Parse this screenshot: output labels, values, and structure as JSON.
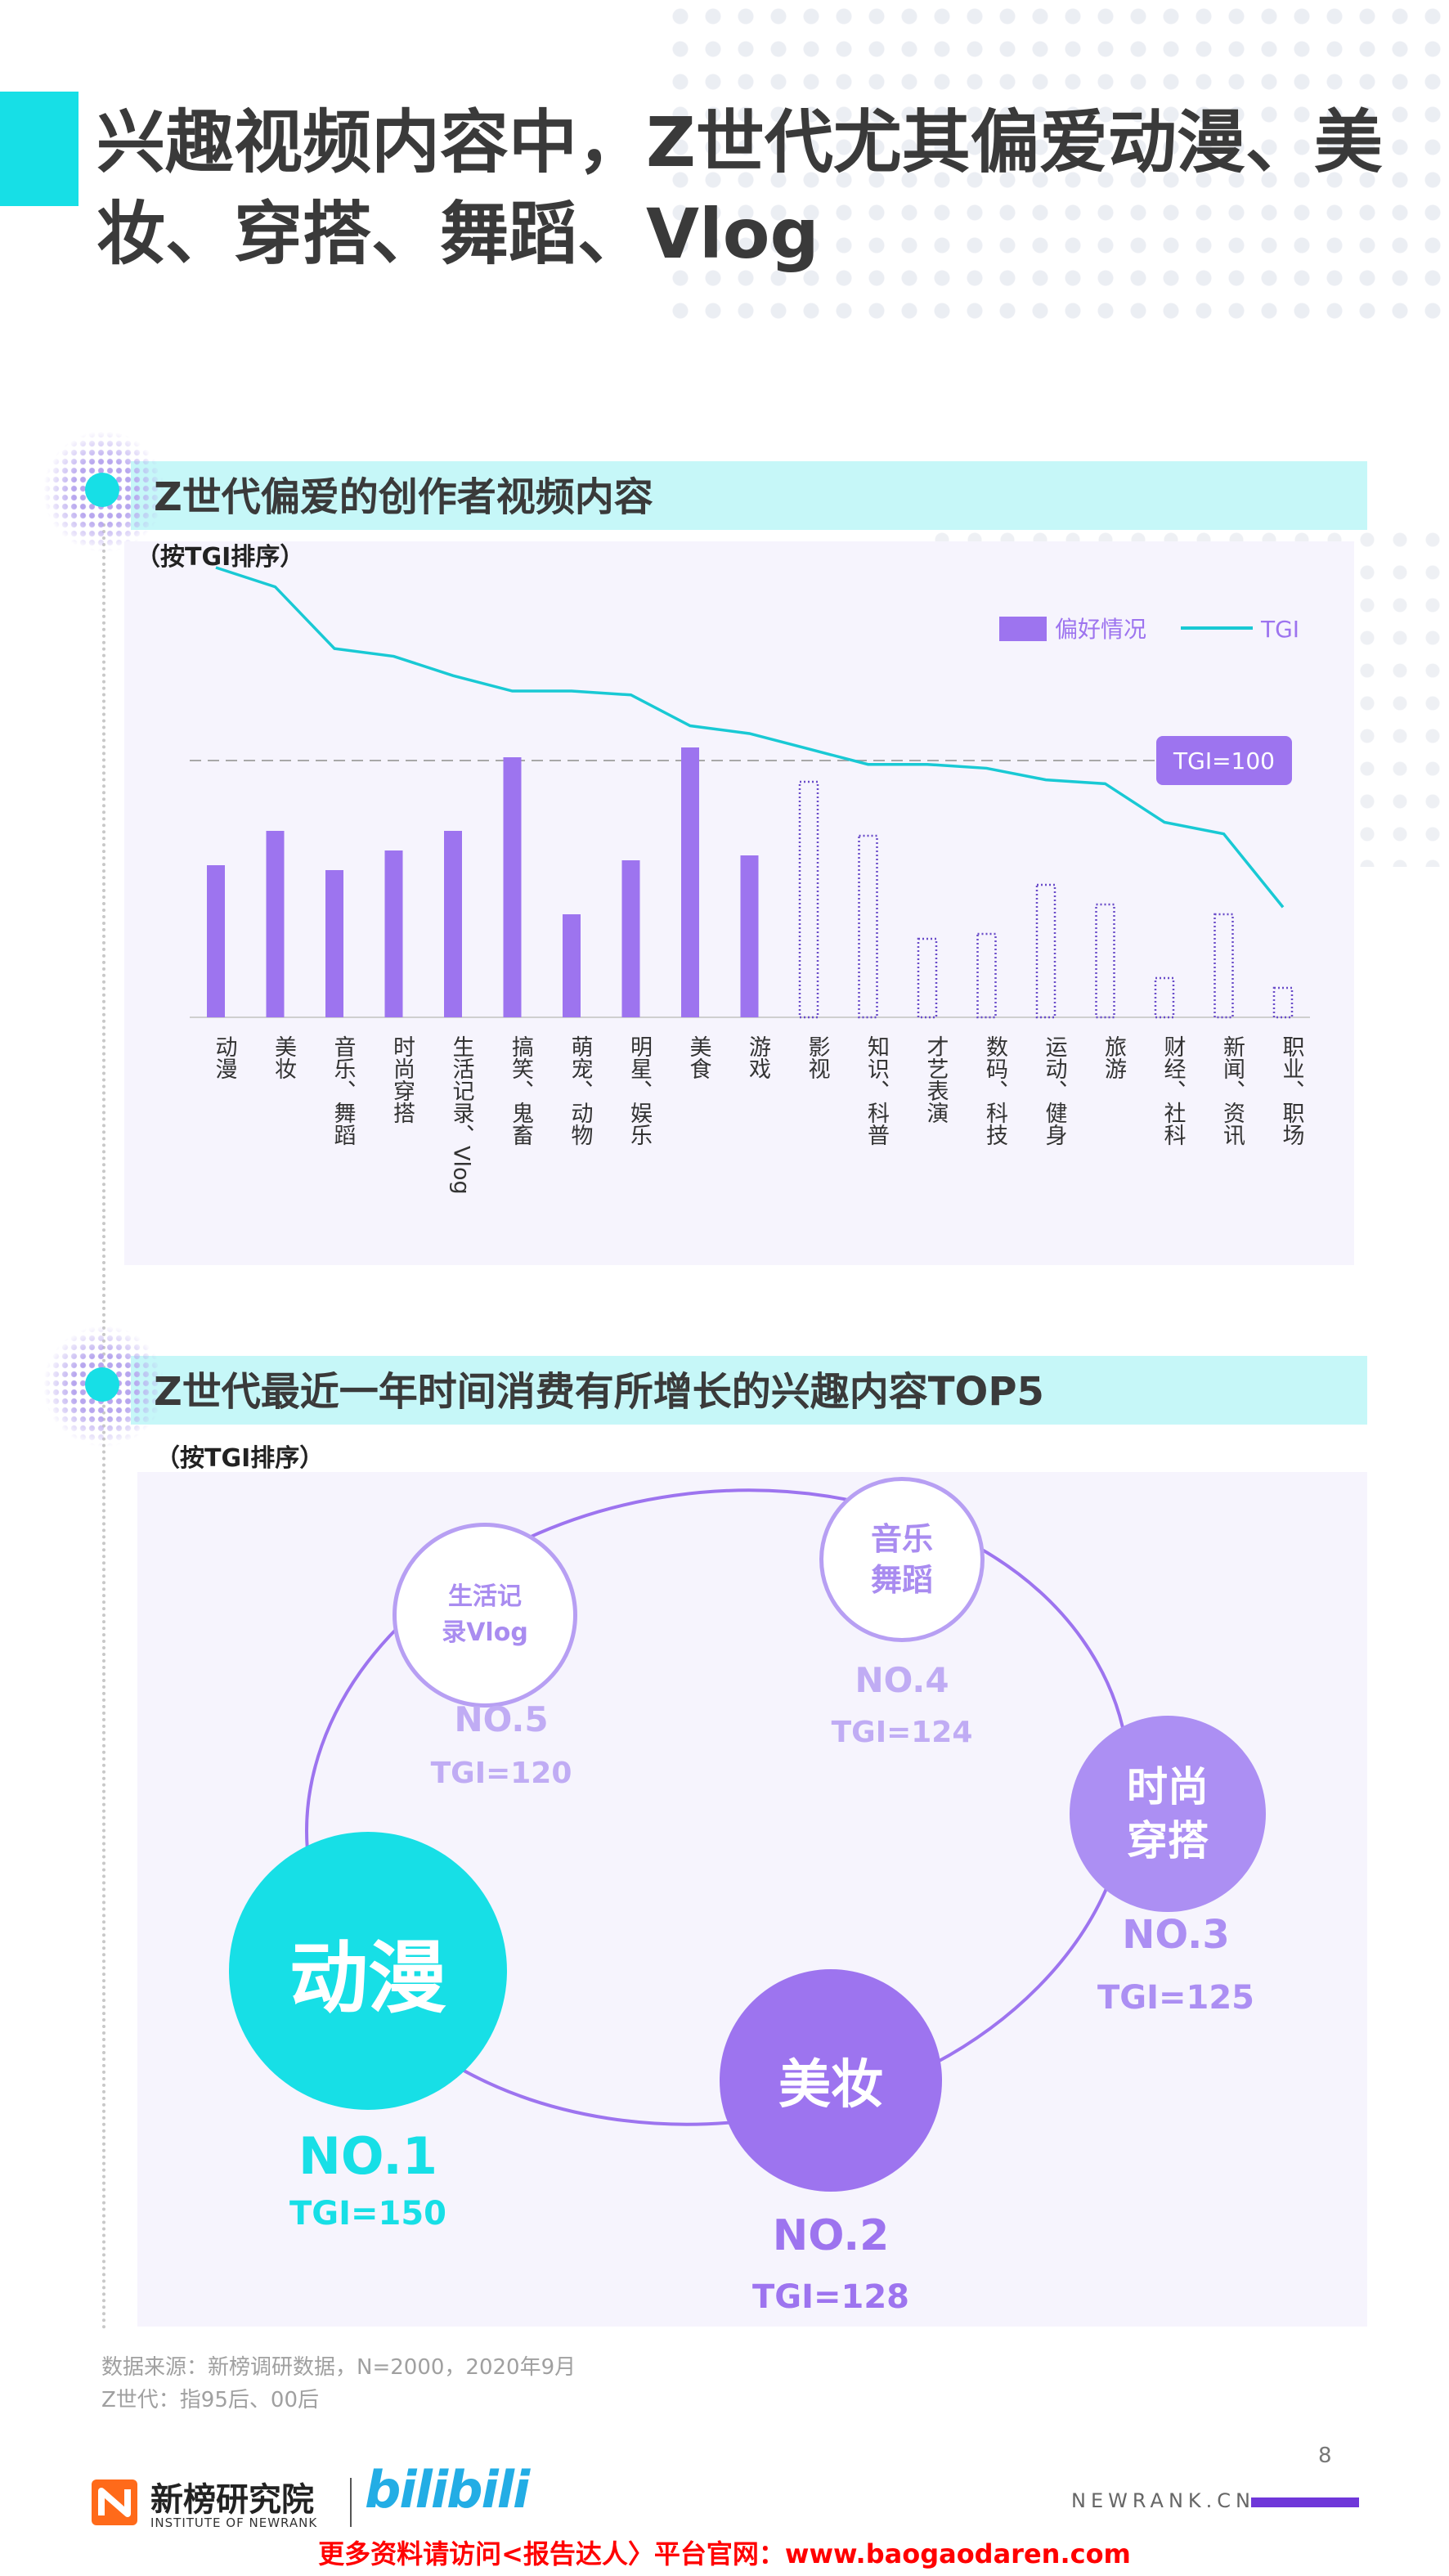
{
  "page": {
    "title_line1": "兴趣视频内容中，Z世代尤其偏爱动漫、美",
    "title_line2": "妆、穿搭、舞蹈、Vlog",
    "page_number": "8"
  },
  "section1": {
    "title": "Z世代偏爱的创作者视频内容",
    "subtitle": "（按TGI排序）"
  },
  "section2": {
    "title": "Z世代最近一年时间消费有所增长的兴趣内容TOP5",
    "subtitle": "（按TGI排序）"
  },
  "chart_data": {
    "type": "bar+line",
    "categories": [
      "动漫",
      "美妆",
      "音乐、舞蹈",
      "时尚穿搭",
      "生活记录、Vlog",
      "搞笑、鬼畜",
      "萌宠、动物",
      "明星、娱乐",
      "美食",
      "游戏",
      "影视",
      "知识、科普",
      "才艺表演",
      "数码、科技",
      "运动、健身",
      "旅游",
      "财经、社科",
      "新闻、资讯",
      "职业、职场"
    ],
    "series": [
      {
        "name": "偏好情况",
        "type": "bar",
        "values": [
          31,
          38,
          30,
          34,
          38,
          53,
          21,
          32,
          55,
          33,
          48,
          37,
          16,
          17,
          27,
          23,
          8,
          21,
          6
        ],
        "highlighted_count": 10
      },
      {
        "name": "TGI",
        "type": "line",
        "values": [
          150,
          145,
          129,
          127,
          122,
          118,
          118,
          117,
          109,
          107,
          103,
          99,
          99,
          98,
          95,
          94,
          84,
          81,
          62
        ]
      }
    ],
    "reference_line": {
      "label": "TGI=100",
      "value": 100
    },
    "legend_position": "top-right",
    "colors": {
      "bar": "#9d74ef",
      "bar_outline": "#6a4cc9",
      "line": "#19c9d4",
      "reference": "#a8a8a8",
      "badge": "#9d74ef"
    }
  },
  "top5": {
    "items": [
      {
        "label": "动漫",
        "rank": "NO.1",
        "tgi": "TGI=150"
      },
      {
        "label": "美妆",
        "rank": "NO.2",
        "tgi": "TGI=128"
      },
      {
        "label_line1": "时尚",
        "label_line2": "穿搭",
        "rank": "NO.3",
        "tgi": "TGI=125"
      },
      {
        "label_line1": "音乐",
        "label_line2": "舞蹈",
        "rank": "NO.4",
        "tgi": "TGI=124"
      },
      {
        "label_line1": "生活记",
        "label_line2": "录Vlog",
        "rank": "NO.5",
        "tgi": "TGI=120"
      }
    ]
  },
  "notes": {
    "source": "数据来源：新榜调研数据，N=2000，2020年9月",
    "definition": "Z世代：指95后、00后"
  },
  "footer": {
    "logo_cn": "新榜研究院",
    "logo_en": "INSTITUTE OF NEWRANK",
    "partner_logo": "bilibili",
    "site": "NEWRANK.CN",
    "link": "更多资料请访问<报告达人〉平台官网：www.baogaodaren.com"
  }
}
